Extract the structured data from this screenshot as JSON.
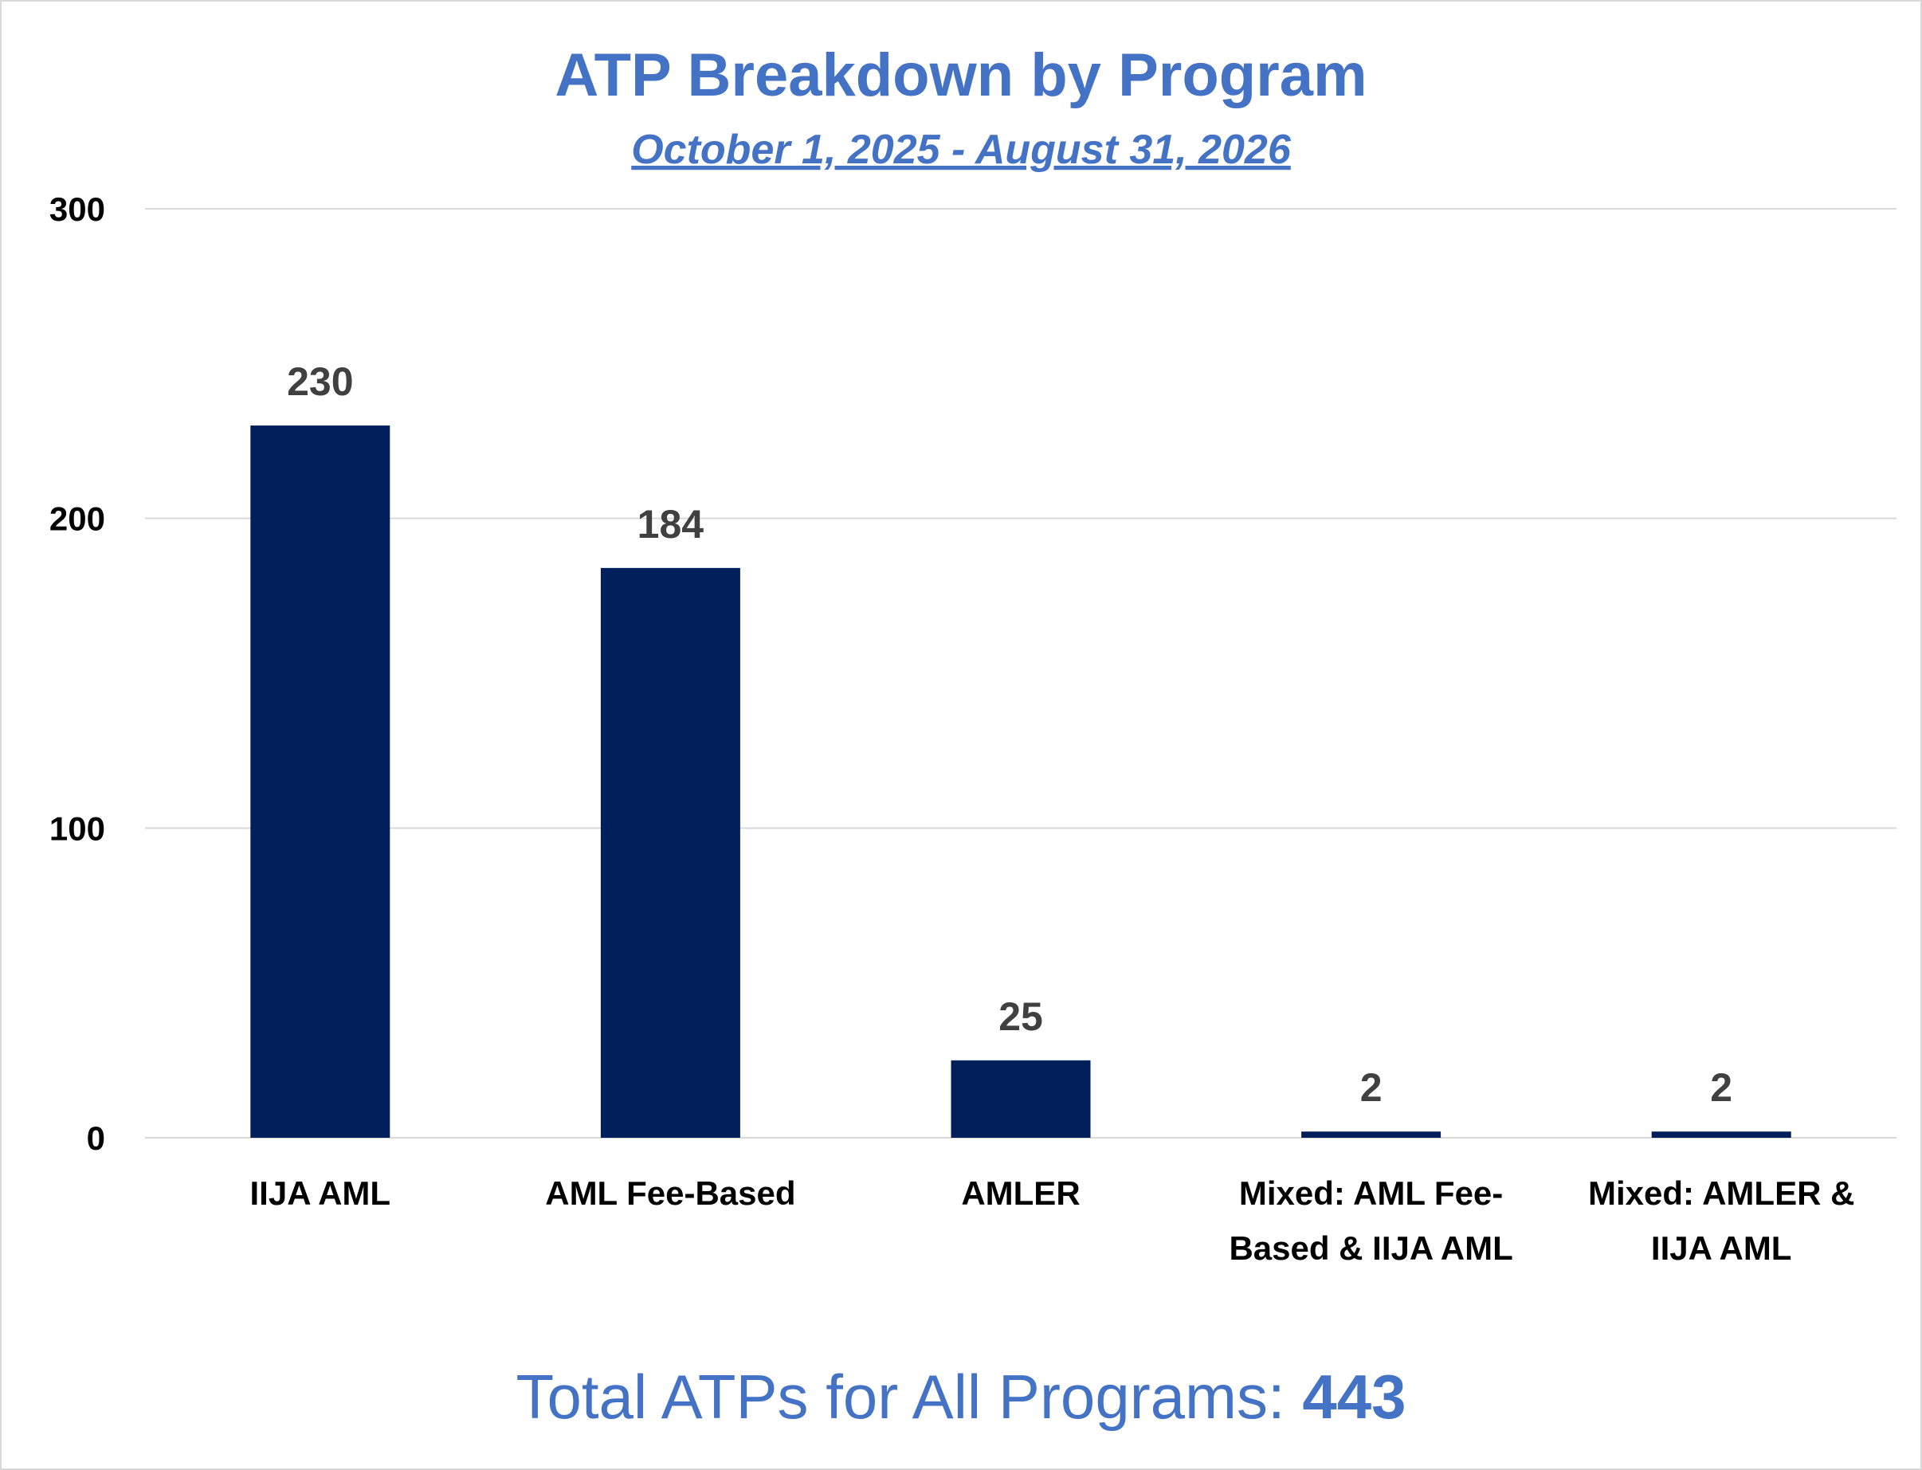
{
  "chart_data": {
    "type": "bar",
    "title": "ATP Breakdown by Program",
    "subtitle": "October 1, 2025 - August 31, 2026",
    "categories": [
      [
        "IIJA AML"
      ],
      [
        "AML Fee-Based"
      ],
      [
        "AMLER"
      ],
      [
        "Mixed: AML Fee-",
        "Based & IIJA AML"
      ],
      [
        "Mixed: AMLER &",
        "IIJA AML"
      ]
    ],
    "values": [
      230,
      184,
      25,
      2,
      2
    ],
    "data_labels": [
      "230",
      "184",
      "25",
      "2",
      "2"
    ],
    "ylim": [
      0,
      300
    ],
    "yticks": [
      0,
      100,
      200,
      300
    ],
    "grid": true,
    "legend": "none",
    "xlabel": "",
    "ylabel": ""
  },
  "footer": {
    "label": "Total ATPs for All Programs: ",
    "total": "443"
  },
  "colors": {
    "bar": "#001f5b",
    "title": "#4472c4",
    "grid": "#d9d9d9",
    "data_label": "#404040"
  }
}
